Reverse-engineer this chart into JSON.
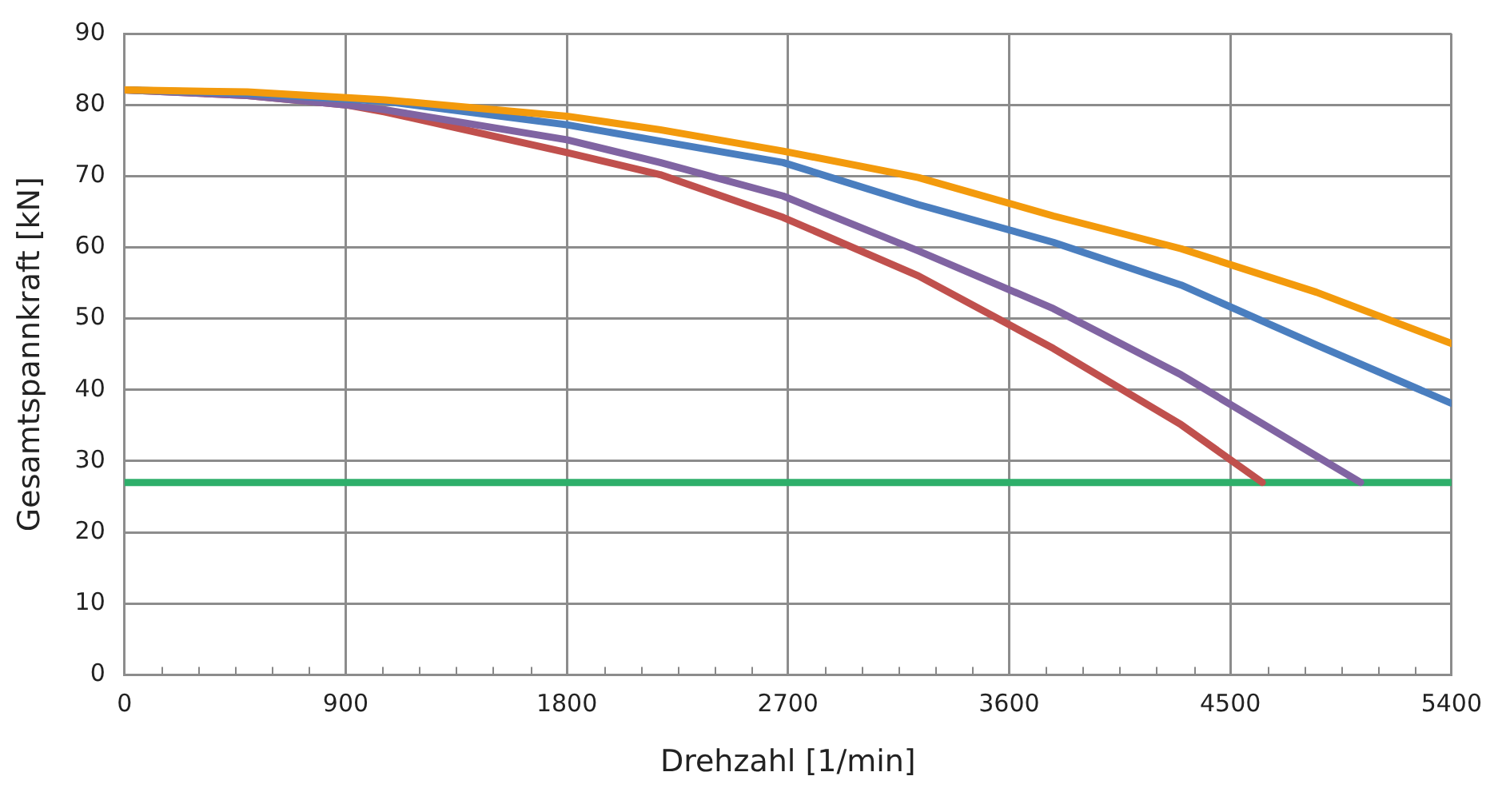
{
  "chart_data": {
    "type": "line",
    "xlabel": "Drehzahl [1/min]",
    "ylabel": "Gesamtspannkraft [kN]",
    "xlim": [
      0,
      5400
    ],
    "ylim": [
      0,
      90
    ],
    "xticks": [
      0,
      {
        "value": 150,
        "label": null
      },
      {
        "value": 300,
        "label": null
      },
      {
        "value": 450,
        "label": null
      },
      {
        "value": 600,
        "label": null
      },
      {
        "value": 750,
        "label": null
      },
      900,
      {
        "value": 1050,
        "label": null
      },
      {
        "value": 1200,
        "label": null
      },
      {
        "value": 1350,
        "label": null
      },
      {
        "value": 1500,
        "label": null
      },
      {
        "value": 1650,
        "label": null
      },
      1800,
      {
        "value": 1950,
        "label": null
      },
      {
        "value": 2100,
        "label": null
      },
      {
        "value": 2250,
        "label": null
      },
      {
        "value": 2400,
        "label": null
      },
      {
        "value": 2550,
        "label": null
      },
      2700,
      {
        "value": 2850,
        "label": null
      },
      {
        "value": 3000,
        "label": null
      },
      {
        "value": 3150,
        "label": null
      },
      {
        "value": 3300,
        "label": null
      },
      {
        "value": 3450,
        "label": null
      },
      3600,
      {
        "value": 3750,
        "label": null
      },
      {
        "value": 3900,
        "label": null
      },
      {
        "value": 4050,
        "label": null
      },
      {
        "value": 4200,
        "label": null
      },
      {
        "value": 4350,
        "label": null
      },
      4500,
      {
        "value": 4650,
        "label": null
      },
      {
        "value": 4800,
        "label": null
      },
      {
        "value": 4950,
        "label": null
      },
      {
        "value": 5100,
        "label": null
      },
      {
        "value": 5250,
        "label": null
      },
      5400
    ],
    "yticks": [
      0,
      10,
      20,
      30,
      40,
      50,
      60,
      70,
      80,
      90
    ],
    "grid": true,
    "legend": false,
    "marker": "none",
    "line_style": "solid",
    "series": [
      {
        "color": "#f39a0c",
        "x": [
          0,
          500,
          1060,
          1800,
          2180,
          2680,
          3230,
          3780,
          4300,
          4850,
          5400
        ],
        "values": [
          82.1,
          81.8,
          80.7,
          78.4,
          76.5,
          73.5,
          69.8,
          64.4,
          59.8,
          53.7,
          46.5
        ]
      },
      {
        "color": "#4a7ebf",
        "x": [
          0,
          500,
          1060,
          1800,
          2180,
          2680,
          3230,
          3780,
          4300,
          4850,
          5400
        ],
        "values": [
          82.1,
          81.6,
          80.5,
          77.2,
          74.9,
          71.9,
          66.0,
          60.7,
          54.7,
          46.3,
          38.1
        ]
      },
      {
        "color": "#8064a2",
        "x": [
          0,
          500,
          900,
          1060,
          1800,
          2180,
          2680,
          3230,
          3780,
          4300,
          4850,
          5030
        ],
        "values": [
          82.1,
          81.3,
          80.0,
          79.3,
          75.1,
          71.9,
          67.2,
          59.5,
          51.4,
          42.1,
          30.7,
          27.0
        ]
      },
      {
        "color": "#c0504d",
        "x": [
          0,
          500,
          900,
          1060,
          1800,
          2180,
          2680,
          3230,
          3780,
          4300,
          4630
        ],
        "values": [
          82.1,
          81.3,
          80.0,
          79.0,
          73.3,
          70.2,
          64.2,
          56.0,
          45.8,
          35.1,
          27.0
        ]
      },
      {
        "color": "#2eaf6a",
        "x": [
          0,
          5400
        ],
        "values": [
          27.0,
          27.0
        ]
      }
    ]
  }
}
